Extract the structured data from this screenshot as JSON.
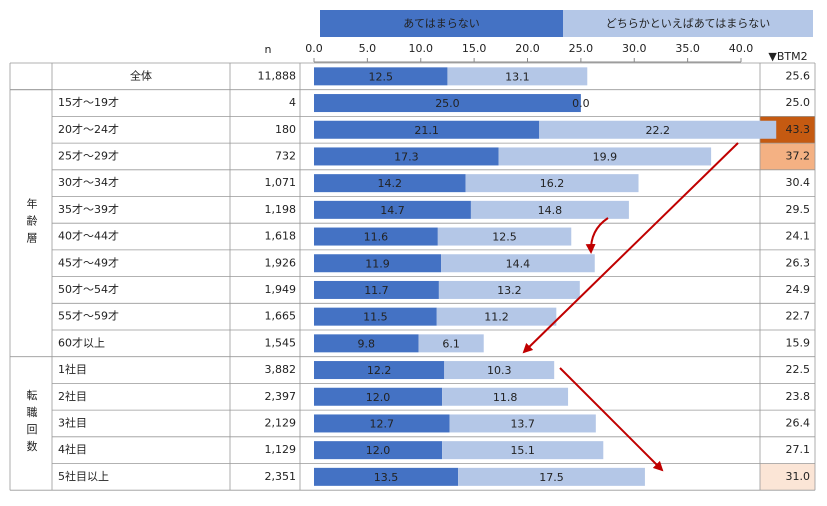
{
  "chart_data": {
    "type": "stacked-bar-table",
    "n_header": "n",
    "categories": [
      "全体",
      "15才～19才",
      "20才～24才",
      "25才～29才",
      "30才～34才",
      "35才～39才",
      "40才～44才",
      "45才～49才",
      "50才～54才",
      "55才～59才",
      "60才以上",
      "1社目",
      "2社目",
      "3社目",
      "4社目",
      "5社目以上"
    ],
    "groups": [
      {
        "label": "年齢層",
        "start": 1,
        "count": 10
      },
      {
        "label": "転職回数",
        "start": 11,
        "count": 5
      }
    ],
    "n": {
      "values": [
        11888,
        4,
        180,
        732,
        1071,
        1198,
        1618,
        1926,
        1949,
        1665,
        1545,
        3882,
        2397,
        2129,
        1129,
        2351
      ],
      "value_labels": [
        "11,888",
        "4",
        "180",
        "732",
        "1,071",
        "1,198",
        "1,618",
        "1,926",
        "1,949",
        "1,665",
        "1,545",
        "3,882",
        "2,397",
        "2,129",
        "1,129",
        "2,351"
      ]
    },
    "series": [
      {
        "name": "あてはまらない",
        "color": "#4472c4",
        "values": [
          12.5,
          25.0,
          21.1,
          17.3,
          14.2,
          14.7,
          11.6,
          11.9,
          11.7,
          11.5,
          9.8,
          12.2,
          12.0,
          12.7,
          12.0,
          13.5
        ],
        "value_labels": [
          "12.5",
          "25.0",
          "21.1",
          "17.3",
          "14.2",
          "14.7",
          "11.6",
          "11.9",
          "11.7",
          "11.5",
          "9.8",
          "12.2",
          "12.0",
          "12.7",
          "12.0",
          "13.5"
        ]
      },
      {
        "name": "どちらかといえばあてはまらない",
        "color": "#b4c7e7",
        "values": [
          13.1,
          0.0,
          22.2,
          19.9,
          16.2,
          14.8,
          12.5,
          14.4,
          13.2,
          11.2,
          6.1,
          10.3,
          11.8,
          13.7,
          15.1,
          17.5
        ],
        "value_labels": [
          "13.1",
          "0.0",
          "22.2",
          "19.9",
          "16.2",
          "14.8",
          "12.5",
          "14.4",
          "13.2",
          "11.2",
          "6.1",
          "10.3",
          "11.8",
          "13.7",
          "15.1",
          "17.5"
        ]
      }
    ],
    "btm2": {
      "name": "▼BTM2",
      "values": [
        25.6,
        25.0,
        43.3,
        37.2,
        30.4,
        29.5,
        24.1,
        26.3,
        24.9,
        22.7,
        15.9,
        22.5,
        23.8,
        26.4,
        27.1,
        31.0
      ],
      "value_labels": [
        "25.6",
        "25.0",
        "43.3",
        "37.2",
        "30.4",
        "29.5",
        "24.1",
        "26.3",
        "24.9",
        "22.7",
        "15.9",
        "22.5",
        "23.8",
        "26.4",
        "27.1",
        "31.0"
      ],
      "colors": [
        null,
        null,
        "#c55a11",
        "#f4b183",
        null,
        null,
        null,
        null,
        null,
        null,
        null,
        null,
        null,
        null,
        null,
        "#fbe5d6"
      ]
    },
    "xlim": [
      0,
      40
    ],
    "xticks": [
      {
        "value": 0,
        "label": "0.0"
      },
      {
        "value": 5,
        "label": "5.0"
      },
      {
        "value": 10,
        "label": "10.0"
      },
      {
        "value": 15,
        "label": "15.0"
      },
      {
        "value": 20,
        "label": "20.0"
      },
      {
        "value": 25,
        "label": "25.0"
      },
      {
        "value": 30,
        "label": "30.0"
      },
      {
        "value": 35,
        "label": "35.0"
      },
      {
        "value": 40,
        "label": "40.0"
      }
    ]
  }
}
